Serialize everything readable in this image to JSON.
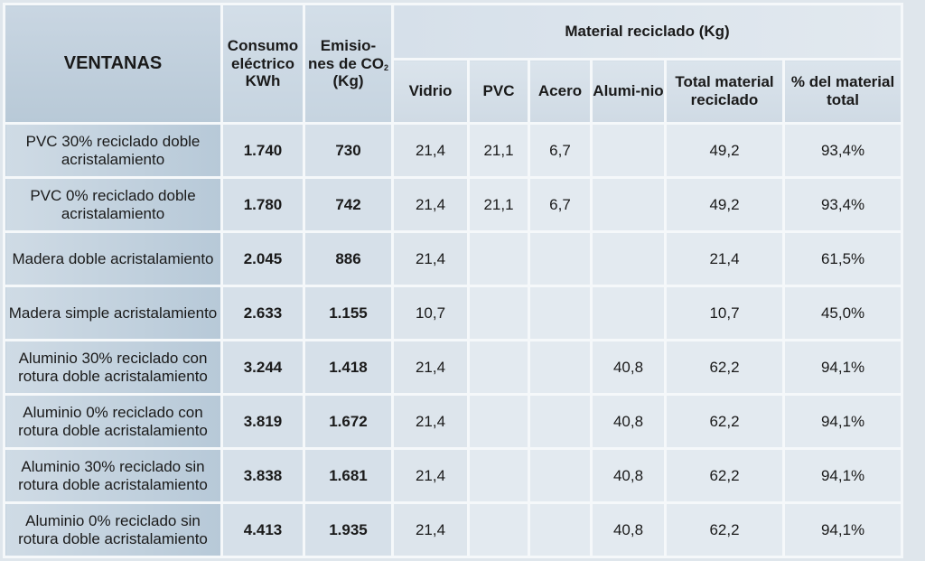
{
  "table": {
    "headers": {
      "ventanas": "VENTANAS",
      "consumo": "Consumo eléctrico KWh",
      "emisiones_line1": "Emisio-",
      "emisiones_line2": "nes de CO",
      "emisiones_sub": "2",
      "emisiones_line3": "(Kg)",
      "material_group": "Material reciclado (Kg)",
      "vidrio": "Vidrio",
      "pvc": "PVC",
      "acero": "Acero",
      "aluminio": "Alumi-nio",
      "total": "Total material reciclado",
      "porcentaje": "% del material total"
    },
    "rows": [
      {
        "name": "PVC 30% reciclado doble acristalamiento",
        "consumo": "1.740",
        "emisiones": "730",
        "vidrio": "21,4",
        "pvc": "21,1",
        "acero": "6,7",
        "aluminio": "",
        "total": "49,2",
        "porcentaje": "93,4%"
      },
      {
        "name": "PVC 0% reciclado doble acristalamiento",
        "consumo": "1.780",
        "emisiones": "742",
        "vidrio": "21,4",
        "pvc": "21,1",
        "acero": "6,7",
        "aluminio": "",
        "total": "49,2",
        "porcentaje": "93,4%"
      },
      {
        "name": "Madera doble acristalamiento",
        "consumo": "2.045",
        "emisiones": "886",
        "vidrio": "21,4",
        "pvc": "",
        "acero": "",
        "aluminio": "",
        "total": "21,4",
        "porcentaje": "61,5%"
      },
      {
        "name": "Madera simple acristalamiento",
        "consumo": "2.633",
        "emisiones": "1.155",
        "vidrio": "10,7",
        "pvc": "",
        "acero": "",
        "aluminio": "",
        "total": "10,7",
        "porcentaje": "45,0%"
      },
      {
        "name": "Aluminio 30% reciclado con rotura doble acristalamiento",
        "consumo": "3.244",
        "emisiones": "1.418",
        "vidrio": "21,4",
        "pvc": "",
        "acero": "",
        "aluminio": "40,8",
        "total": "62,2",
        "porcentaje": "94,1%"
      },
      {
        "name": "Aluminio 0% reciclado con rotura doble acristalamiento",
        "consumo": "3.819",
        "emisiones": "1.672",
        "vidrio": "21,4",
        "pvc": "",
        "acero": "",
        "aluminio": "40,8",
        "total": "62,2",
        "porcentaje": "94,1%"
      },
      {
        "name": "Aluminio 30% reciclado sin rotura doble acristalamiento",
        "consumo": "3.838",
        "emisiones": "1.681",
        "vidrio": "21,4",
        "pvc": "",
        "acero": "",
        "aluminio": "40,8",
        "total": "62,2",
        "porcentaje": "94,1%"
      },
      {
        "name": "Aluminio 0% reciclado sin rotura doble acristalamiento",
        "consumo": "4.413",
        "emisiones": "1.935",
        "vidrio": "21,4",
        "pvc": "",
        "acero": "",
        "aluminio": "40,8",
        "total": "62,2",
        "porcentaje": "94,1%"
      }
    ]
  },
  "colors": {
    "header_bg": "#c6d4e0",
    "name_cell_bg": "#b7c9d8",
    "value_cell_bg": "#dde5ec",
    "grid_lines": "#f5f8fa"
  }
}
